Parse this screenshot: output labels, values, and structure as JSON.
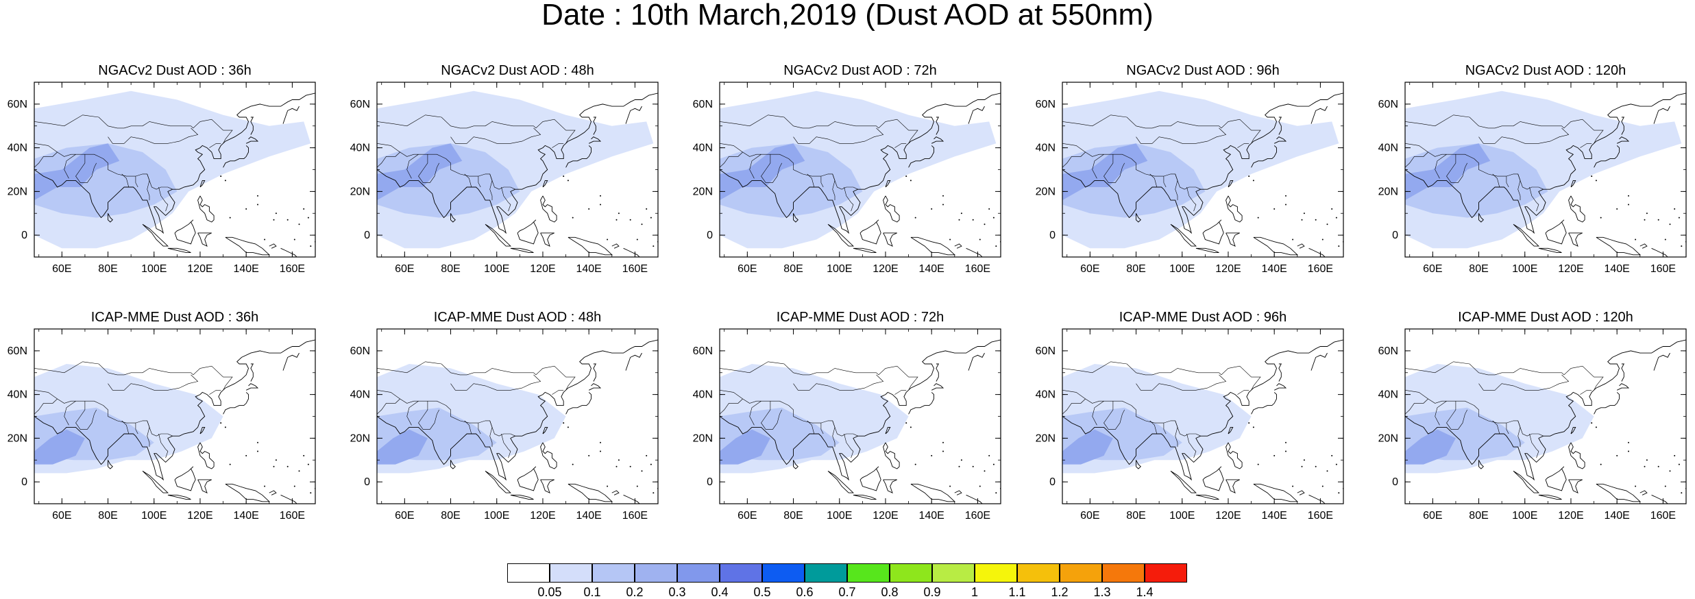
{
  "title": "Date : 10th March,2019 (Dust AOD at 550nm)",
  "rows": [
    {
      "model": "NGACv2",
      "panels": [
        {
          "title": "NGACv2 Dust AOD : 36h"
        },
        {
          "title": "NGACv2 Dust AOD : 48h"
        },
        {
          "title": "NGACv2 Dust AOD : 72h"
        },
        {
          "title": "NGACv2 Dust AOD : 96h"
        },
        {
          "title": "NGACv2 Dust AOD : 120h"
        }
      ]
    },
    {
      "model": "ICAP-MME",
      "panels": [
        {
          "title": "ICAP-MME Dust AOD : 36h"
        },
        {
          "title": "ICAP-MME Dust AOD : 48h"
        },
        {
          "title": "ICAP-MME Dust AOD : 72h"
        },
        {
          "title": "ICAP-MME Dust AOD : 96h"
        },
        {
          "title": "ICAP-MME Dust AOD : 120h"
        }
      ]
    }
  ],
  "axes": {
    "lon_ticks": [
      "60E",
      "80E",
      "100E",
      "120E",
      "140E",
      "160E"
    ],
    "lon_values": [
      60,
      80,
      100,
      120,
      140,
      160
    ],
    "lat_ticks": [
      "60N",
      "40N",
      "20N",
      "0"
    ],
    "lat_values": [
      60,
      40,
      20,
      0
    ],
    "lon_range": [
      48,
      170
    ],
    "lat_range": [
      -10,
      70
    ]
  },
  "colorbar": {
    "colors": [
      "#ffffff",
      "#d4defa",
      "#b5c6f5",
      "#9fb2f0",
      "#8198ec",
      "#5f73e6",
      "#0d5cf2",
      "#009b9b",
      "#57e61c",
      "#8ee61c",
      "#b8ec44",
      "#f5f50b",
      "#f5c00b",
      "#f5a20b",
      "#f5780b",
      "#f51c0b"
    ],
    "labels": [
      "0.05",
      "0.1",
      "0.2",
      "0.3",
      "0.4",
      "0.5",
      "0.6",
      "0.7",
      "0.8",
      "0.9",
      "1",
      "1.1",
      "1.2",
      "1.3",
      "1.4"
    ]
  }
}
